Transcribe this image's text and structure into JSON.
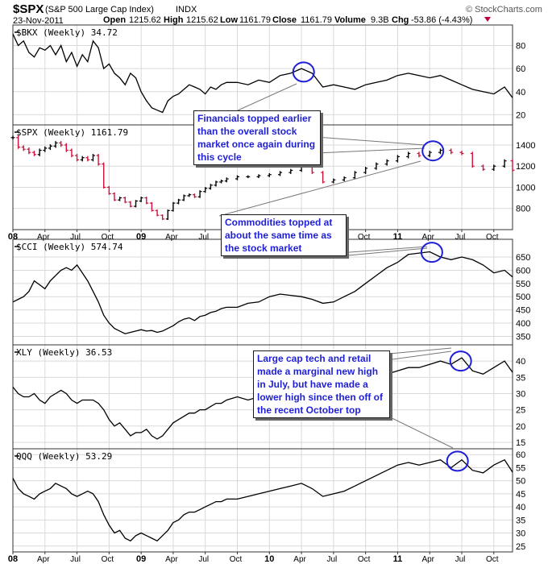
{
  "header": {
    "symbol": "$SPX",
    "name": "(S&P 500 Large Cap Index)",
    "exchange": "INDX",
    "date": "23-Nov-2011",
    "open_label": "Open",
    "open": "1215.62",
    "high_label": "High",
    "high": "1215.62",
    "low_label": "Low",
    "low": "1161.79",
    "close_label": "Close",
    "close": "1161.79",
    "volume_label": "Volume",
    "volume": "9.3B",
    "chg_label": "Chg",
    "chg": "-53.86 (-4.43%)",
    "brand": "© StockCharts.com"
  },
  "colors": {
    "up_bar": "#000000",
    "down_bar": "#d0103a",
    "circle": "#1f1fd6",
    "annotation_text": "#1f1fd6",
    "grid": "#d9d9d9"
  },
  "x_axis": {
    "labels": [
      {
        "t": 0,
        "text": "08",
        "bold": true
      },
      {
        "t": 3,
        "text": "Apr",
        "bold": false
      },
      {
        "t": 6,
        "text": "Jul",
        "bold": false
      },
      {
        "t": 9,
        "text": "Oct",
        "bold": false
      },
      {
        "t": 12,
        "text": "09",
        "bold": true
      },
      {
        "t": 15,
        "text": "Apr",
        "bold": false
      },
      {
        "t": 18,
        "text": "Jul",
        "bold": false
      },
      {
        "t": 21,
        "text": "Oct",
        "bold": false
      },
      {
        "t": 24,
        "text": "10",
        "bold": true
      },
      {
        "t": 27,
        "text": "Apr",
        "bold": false
      },
      {
        "t": 30,
        "text": "Jul",
        "bold": false
      },
      {
        "t": 33,
        "text": "Oct",
        "bold": false
      },
      {
        "t": 36,
        "text": "11",
        "bold": true
      },
      {
        "t": 39,
        "text": "Apr",
        "bold": false
      },
      {
        "t": 42,
        "text": "Jul",
        "bold": false
      },
      {
        "t": 45,
        "text": "Oct",
        "bold": false
      }
    ],
    "t_min": 0,
    "t_max": 46.75
  },
  "chart_data": [
    {
      "type": "line",
      "label": "$BKX (Weekly) 34.72",
      "yticks": [
        "20",
        "40",
        "60",
        "80"
      ],
      "ylim": [
        14,
        95
      ],
      "x_unit": "months since Jan 2008",
      "x": [
        0,
        0.5,
        1,
        1.5,
        2,
        2.5,
        3,
        3.5,
        4,
        4.5,
        5,
        5.5,
        6,
        6.5,
        7,
        7.5,
        8,
        8.5,
        9,
        9.5,
        10,
        10.5,
        11,
        11.5,
        12,
        12.5,
        13,
        13.5,
        14,
        14.5,
        15,
        15.5,
        16,
        16.5,
        17,
        17.5,
        18,
        18.5,
        19,
        19.5,
        20,
        21,
        22,
        23,
        24,
        25,
        26,
        27,
        28,
        29,
        30,
        31,
        32,
        33,
        34,
        35,
        36,
        37,
        38,
        39,
        40,
        41,
        42,
        43,
        44,
        45,
        46,
        46.75
      ],
      "values": [
        90,
        80,
        84,
        74,
        70,
        78,
        76,
        80,
        72,
        80,
        66,
        74,
        62,
        72,
        66,
        84,
        78,
        60,
        64,
        56,
        52,
        46,
        56,
        52,
        40,
        32,
        26,
        24,
        22,
        32,
        36,
        38,
        42,
        46,
        44,
        42,
        38,
        44,
        42,
        46,
        48,
        48,
        46,
        50,
        48,
        54,
        56,
        60,
        56,
        44,
        46,
        44,
        42,
        46,
        48,
        50,
        54,
        56,
        54,
        52,
        54,
        50,
        46,
        42,
        40,
        38,
        44,
        34.72
      ]
    },
    {
      "type": "ohlc",
      "label": "$SPX (Weekly) 1161.79",
      "yticks": [
        "800",
        "1000",
        "1200",
        "1400"
      ],
      "ylim": [
        630,
        1560
      ],
      "x_unit": "months since Jan 2008",
      "x": [
        0,
        0.5,
        1,
        1.5,
        2,
        2.5,
        3,
        3.5,
        4,
        4.5,
        5,
        5.5,
        6,
        6.5,
        7,
        7.5,
        8,
        8.5,
        9,
        9.5,
        10,
        10.5,
        11,
        11.5,
        12,
        12.5,
        13,
        13.5,
        14,
        14.5,
        15,
        15.5,
        16,
        16.5,
        17,
        17.5,
        18,
        18.5,
        19,
        19.5,
        20,
        21,
        22,
        23,
        24,
        25,
        26,
        27,
        28,
        29,
        30,
        31,
        32,
        33,
        34,
        35,
        36,
        37,
        38,
        39,
        40,
        41,
        42,
        43,
        44,
        45,
        46,
        46.75
      ],
      "values": [
        1470,
        1380,
        1360,
        1330,
        1310,
        1350,
        1370,
        1390,
        1420,
        1400,
        1350,
        1300,
        1260,
        1280,
        1260,
        1300,
        1220,
        1000,
        940,
        880,
        900,
        860,
        820,
        870,
        900,
        850,
        780,
        735,
        700,
        780,
        850,
        880,
        920,
        930,
        910,
        960,
        990,
        1020,
        1050,
        1060,
        1080,
        1100,
        1100,
        1110,
        1120,
        1140,
        1160,
        1200,
        1140,
        1050,
        1070,
        1090,
        1140,
        1180,
        1220,
        1250,
        1290,
        1320,
        1300,
        1330,
        1350,
        1330,
        1320,
        1200,
        1170,
        1200,
        1250,
        1161.79
      ]
    },
    {
      "type": "line",
      "label": "$CCI (Weekly) 574.74",
      "yticks": [
        "350",
        "400",
        "450",
        "500",
        "550",
        "600",
        "650"
      ],
      "ylim": [
        330,
        705
      ],
      "x_unit": "months since Jan 2008",
      "x": [
        0,
        0.5,
        1,
        1.5,
        2,
        2.5,
        3,
        3.5,
        4,
        4.5,
        5,
        5.5,
        6,
        6.5,
        7,
        7.5,
        8,
        8.5,
        9,
        9.5,
        10,
        10.5,
        11,
        11.5,
        12,
        12.5,
        13,
        13.5,
        14,
        14.5,
        15,
        15.5,
        16,
        16.5,
        17,
        17.5,
        18,
        18.5,
        19,
        19.5,
        20,
        21,
        22,
        23,
        24,
        25,
        26,
        27,
        28,
        29,
        30,
        31,
        32,
        33,
        34,
        35,
        36,
        37,
        38,
        39,
        40,
        41,
        42,
        43,
        44,
        45,
        46,
        46.75
      ],
      "values": [
        480,
        490,
        500,
        520,
        560,
        545,
        530,
        560,
        580,
        600,
        610,
        600,
        620,
        590,
        560,
        520,
        480,
        430,
        400,
        380,
        370,
        360,
        365,
        370,
        375,
        370,
        372,
        365,
        370,
        380,
        390,
        405,
        415,
        420,
        410,
        425,
        430,
        440,
        445,
        455,
        460,
        460,
        475,
        480,
        500,
        510,
        505,
        500,
        490,
        475,
        480,
        500,
        520,
        550,
        580,
        610,
        630,
        660,
        665,
        670,
        650,
        640,
        650,
        640,
        620,
        590,
        600,
        574.74
      ]
    },
    {
      "type": "line",
      "label": "XLY (Weekly) 36.53",
      "yticks": [
        "15",
        "20",
        "25",
        "30",
        "35",
        "40"
      ],
      "ylim": [
        14,
        44
      ],
      "x_unit": "months since Jan 2008",
      "x": [
        0,
        0.5,
        1,
        1.5,
        2,
        2.5,
        3,
        3.5,
        4,
        4.5,
        5,
        5.5,
        6,
        6.5,
        7,
        7.5,
        8,
        8.5,
        9,
        9.5,
        10,
        10.5,
        11,
        11.5,
        12,
        12.5,
        13,
        13.5,
        14,
        14.5,
        15,
        15.5,
        16,
        16.5,
        17,
        17.5,
        18,
        18.5,
        19,
        19.5,
        20,
        21,
        22,
        23,
        24,
        25,
        26,
        27,
        28,
        29,
        30,
        31,
        32,
        33,
        34,
        35,
        36,
        37,
        38,
        39,
        40,
        41,
        42,
        43,
        44,
        45,
        46,
        46.75
      ],
      "values": [
        32,
        30,
        29,
        29,
        30,
        28,
        27,
        29,
        30,
        31,
        30,
        28,
        27,
        28,
        28,
        28,
        27,
        25,
        22,
        20,
        21,
        19,
        17,
        18,
        18,
        19,
        17,
        16,
        17,
        19,
        21,
        22,
        23,
        24,
        24,
        25,
        25,
        26,
        27,
        27,
        28,
        29,
        28,
        29,
        30,
        31,
        32,
        33,
        32,
        30,
        29,
        30,
        31,
        33,
        35,
        36,
        37,
        38,
        38,
        39,
        40,
        39,
        41,
        37,
        36,
        38,
        40,
        36.53
      ]
    },
    {
      "type": "line",
      "label": "QQQ (Weekly) 53.29",
      "yticks": [
        "25",
        "30",
        "35",
        "40",
        "45",
        "50",
        "55",
        "60"
      ],
      "ylim": [
        24,
        61
      ],
      "x_unit": "months since Jan 2008",
      "x": [
        0,
        0.5,
        1,
        1.5,
        2,
        2.5,
        3,
        3.5,
        4,
        4.5,
        5,
        5.5,
        6,
        6.5,
        7,
        7.5,
        8,
        8.5,
        9,
        9.5,
        10,
        10.5,
        11,
        11.5,
        12,
        12.5,
        13,
        13.5,
        14,
        14.5,
        15,
        15.5,
        16,
        16.5,
        17,
        17.5,
        18,
        18.5,
        19,
        19.5,
        20,
        21,
        22,
        23,
        24,
        25,
        26,
        27,
        28,
        29,
        30,
        31,
        32,
        33,
        34,
        35,
        36,
        37,
        38,
        39,
        40,
        41,
        42,
        43,
        44,
        45,
        46,
        46.75
      ],
      "values": [
        51,
        47,
        45,
        44,
        43,
        45,
        46,
        47,
        49,
        48,
        47,
        45,
        44,
        45,
        46,
        45,
        42,
        37,
        33,
        30,
        31,
        28,
        27,
        29,
        30,
        29,
        28,
        27,
        29,
        31,
        34,
        35,
        37,
        38,
        38,
        39,
        40,
        41,
        42,
        42,
        43,
        43,
        44,
        45,
        46,
        47,
        48,
        49,
        47,
        44,
        45,
        46,
        48,
        50,
        52,
        54,
        56,
        57,
        56,
        57,
        58,
        55,
        58,
        54,
        53,
        56,
        58,
        53.29
      ]
    }
  ],
  "annotations": {
    "financials": "Financials topped earlier than the overall stock market once again during this cycle",
    "commodities": "Commodities topped at about the same time as the stock market",
    "tech_retail": "Large cap tech and retail made a marginal new high in July, but have made a lower high since then off of the recent October top"
  }
}
